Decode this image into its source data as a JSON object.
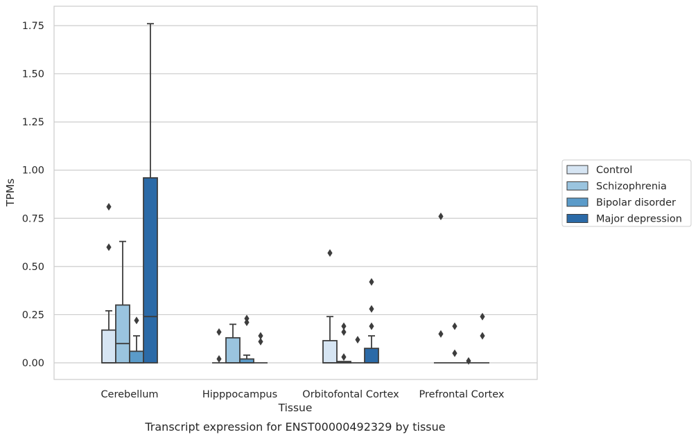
{
  "chart_data": {
    "type": "box",
    "caption": "Transcript expression for ENST00000492329 by tissue",
    "xlabel": "Tissue",
    "ylabel": "TPMs",
    "ylim": [
      -0.09,
      1.85
    ],
    "yticks": [
      0.0,
      0.25,
      0.5,
      0.75,
      1.0,
      1.25,
      1.5,
      1.75
    ],
    "ytick_labels": [
      "0.00",
      "0.25",
      "0.50",
      "0.75",
      "1.00",
      "1.25",
      "1.50",
      "1.75"
    ],
    "categories": [
      "Cerebellum",
      "Hipppocampus",
      "Orbitofontal Cortex",
      "Prefrontal Cortex"
    ],
    "grid": true,
    "legend_position": "right",
    "series": [
      {
        "name": "Control",
        "color": "#d6e5f3",
        "boxes": [
          {
            "q1": 0.0,
            "median": 0.0,
            "q3": 0.17,
            "whisker_low": 0.0,
            "whisker_high": 0.27,
            "outliers": [
              0.6,
              0.81
            ]
          },
          {
            "q1": 0.0,
            "median": 0.0,
            "q3": 0.0,
            "whisker_low": 0.0,
            "whisker_high": 0.0,
            "outliers": [
              0.02,
              0.16
            ]
          },
          {
            "q1": 0.0,
            "median": 0.0,
            "q3": 0.115,
            "whisker_low": 0.0,
            "whisker_high": 0.24,
            "outliers": [
              0.57
            ]
          },
          {
            "q1": 0.0,
            "median": 0.0,
            "q3": 0.0,
            "whisker_low": 0.0,
            "whisker_high": 0.0,
            "outliers": [
              0.15,
              0.76
            ]
          }
        ]
      },
      {
        "name": "Schizophrenia",
        "color": "#9ac4df",
        "boxes": [
          {
            "q1": 0.0,
            "median": 0.1,
            "q3": 0.3,
            "whisker_low": 0.0,
            "whisker_high": 0.63,
            "outliers": []
          },
          {
            "q1": 0.0,
            "median": 0.0,
            "q3": 0.13,
            "whisker_low": 0.0,
            "whisker_high": 0.2,
            "outliers": []
          },
          {
            "q1": 0.0,
            "median": 0.0,
            "q3": 0.007,
            "whisker_low": 0.0,
            "whisker_high": 0.007,
            "outliers": [
              0.03,
              0.16,
              0.19
            ]
          },
          {
            "q1": 0.0,
            "median": 0.0,
            "q3": 0.0,
            "whisker_low": 0.0,
            "whisker_high": 0.0,
            "outliers": [
              0.05,
              0.19
            ]
          }
        ]
      },
      {
        "name": "Bipolar disorder",
        "color": "#5b9bc9",
        "boxes": [
          {
            "q1": 0.0,
            "median": 0.0,
            "q3": 0.06,
            "whisker_low": 0.0,
            "whisker_high": 0.14,
            "outliers": [
              0.22
            ]
          },
          {
            "q1": 0.0,
            "median": 0.0,
            "q3": 0.02,
            "whisker_low": 0.0,
            "whisker_high": 0.04,
            "outliers": [
              0.21,
              0.23
            ]
          },
          {
            "q1": 0.0,
            "median": 0.0,
            "q3": 0.0,
            "whisker_low": 0.0,
            "whisker_high": 0.0,
            "outliers": [
              0.12
            ]
          },
          {
            "q1": 0.0,
            "median": 0.0,
            "q3": 0.0,
            "whisker_low": 0.0,
            "whisker_high": 0.0,
            "outliers": [
              0.01
            ]
          }
        ]
      },
      {
        "name": "Major depression",
        "color": "#2b6aa7",
        "boxes": [
          {
            "q1": 0.0,
            "median": 0.24,
            "q3": 0.96,
            "whisker_low": 0.0,
            "whisker_high": 1.76,
            "outliers": []
          },
          {
            "q1": 0.0,
            "median": 0.0,
            "q3": 0.0,
            "whisker_low": 0.0,
            "whisker_high": 0.0,
            "outliers": [
              0.11,
              0.14
            ]
          },
          {
            "q1": 0.0,
            "median": 0.0,
            "q3": 0.075,
            "whisker_low": 0.0,
            "whisker_high": 0.14,
            "outliers": [
              0.19,
              0.28,
              0.42
            ]
          },
          {
            "q1": 0.0,
            "median": 0.0,
            "q3": 0.0,
            "whisker_low": 0.0,
            "whisker_high": 0.0,
            "outliers": [
              0.14,
              0.24
            ]
          }
        ]
      }
    ]
  }
}
